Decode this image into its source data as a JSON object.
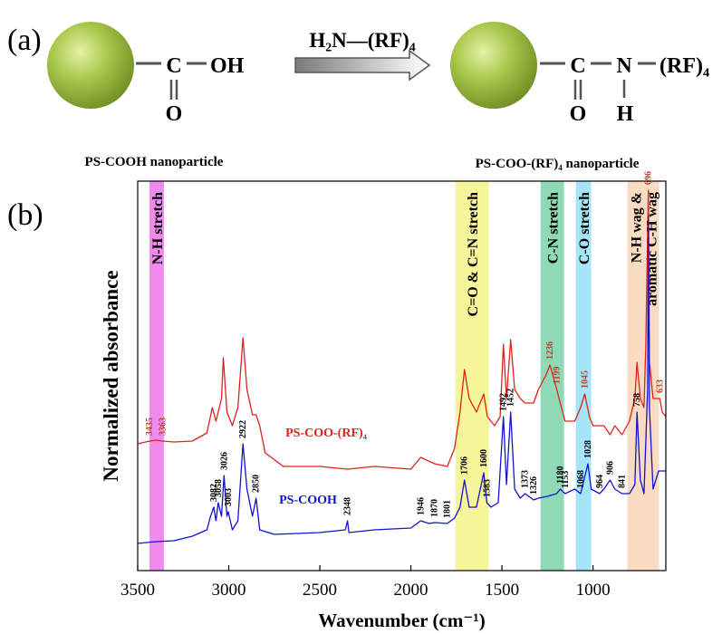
{
  "scheme": {
    "panel_label": "(a)",
    "left": {
      "c": "C",
      "oh": "OH",
      "o": "O",
      "caption": "PS-COOH nanoparticle"
    },
    "reagent": "H₂N—(RF)₄",
    "right": {
      "c": "C",
      "n": "N",
      "rf": "(RF)₄",
      "o": "O",
      "h": "H",
      "caption": "PS-COO-(RF)₄ nanoparticle"
    }
  },
  "chart_data": {
    "type": "line",
    "panel_label": "(b)",
    "x_label": "Wavenumber (cm⁻¹)",
    "y_label": "Normalized absorbance",
    "xlim": [
      3500,
      600
    ],
    "xticks": [
      3500,
      3000,
      2500,
      2000,
      1500,
      1000
    ],
    "ylim": [
      0,
      43
    ],
    "bands": [
      {
        "range": [
          3435,
          3356
        ],
        "color": "#ef8bef",
        "lines": [
          "N-H stretch"
        ]
      },
      {
        "range": [
          1755,
          1572
        ],
        "color": "#f7f59a",
        "lines": [
          "C=O & C=N stretch"
        ]
      },
      {
        "range": [
          1288,
          1159
        ],
        "color": "#8fd9b6",
        "lines": [
          "C-N stretch"
        ]
      },
      {
        "range": [
          1094,
          1010
        ],
        "color": "#a6e4f7",
        "lines": [
          "C-O stretch"
        ]
      },
      {
        "range": [
          811,
          637
        ],
        "color": "#f9dcc2",
        "lines": [
          "N-H wag &",
          "aromatic C-H wag"
        ]
      }
    ],
    "series": [
      {
        "name": "PS-COO-(RF)₄",
        "color": "#e0201c",
        "label_color": "#b5432e",
        "x": [
          3500,
          3435,
          3400,
          3363,
          3300,
          3200,
          3120,
          3090,
          3070,
          3058,
          3040,
          3030,
          3010,
          2980,
          2950,
          2922,
          2900,
          2870,
          2850,
          2830,
          2800,
          2700,
          2500,
          2348,
          2200,
          2000,
          1946,
          1870,
          1800,
          1760,
          1730,
          1706,
          1680,
          1640,
          1600,
          1580,
          1540,
          1510,
          1492,
          1475,
          1452,
          1430,
          1400,
          1373,
          1326,
          1300,
          1260,
          1236,
          1199,
          1180,
          1153,
          1100,
          1068,
          1045,
          1020,
          1000,
          964,
          940,
          906,
          880,
          841,
          800,
          770,
          758,
          740,
          720,
          710,
          696,
          690,
          670,
          650,
          633,
          620,
          600
        ],
        "values": [
          14.0,
          14.3,
          14.4,
          14.3,
          14.2,
          14.3,
          15.2,
          18.0,
          16.5,
          17.5,
          19.0,
          23.5,
          17.5,
          16.0,
          18.0,
          25.7,
          20.0,
          17.2,
          17.2,
          16.0,
          13.0,
          11.5,
          11.5,
          11.2,
          11.5,
          11.2,
          12.5,
          11.8,
          11.5,
          13.5,
          17.5,
          22.2,
          19.0,
          17.5,
          19.5,
          17.0,
          16.0,
          17.0,
          25.0,
          19.0,
          25.5,
          20.0,
          19.0,
          18.5,
          18.5,
          20.0,
          21.5,
          22.7,
          20.0,
          18.5,
          16.5,
          16.5,
          18.0,
          19.5,
          17.0,
          16.0,
          16.0,
          16.0,
          15.0,
          16.0,
          15.0,
          16.5,
          19.0,
          23.0,
          19.0,
          18.0,
          25.0,
          42.0,
          23.0,
          19.0,
          19.0,
          19.0,
          17.5,
          17.0
        ],
        "peak_labels": [
          3435,
          3363,
          1236,
          1199,
          1045,
          696,
          633
        ]
      },
      {
        "name": "PS-COOH",
        "color": "#1212d2",
        "label_color": "#000000",
        "x": [
          3500,
          3400,
          3300,
          3200,
          3120,
          3100,
          3082,
          3070,
          3058,
          3040,
          3026,
          3010,
          3003,
          2980,
          2950,
          2922,
          2900,
          2870,
          2850,
          2830,
          2750,
          2500,
          2360,
          2348,
          2340,
          2200,
          2000,
          1946,
          1900,
          1870,
          1801,
          1760,
          1730,
          1706,
          1680,
          1640,
          1600,
          1583,
          1560,
          1520,
          1492,
          1475,
          1452,
          1430,
          1400,
          1373,
          1326,
          1300,
          1250,
          1200,
          1180,
          1153,
          1100,
          1068,
          1028,
          1010,
          964,
          940,
          906,
          880,
          841,
          800,
          770,
          758,
          740,
          720,
          700,
          696,
          690,
          670,
          640,
          600
        ],
        "values": [
          3.0,
          3.2,
          3.3,
          3.8,
          4.5,
          6.0,
          7.0,
          5.5,
          7.5,
          6.0,
          10.5,
          6.0,
          6.5,
          4.5,
          5.5,
          14.0,
          9.0,
          6.0,
          8.0,
          4.5,
          4.0,
          4.2,
          4.5,
          5.5,
          4.2,
          4.5,
          4.7,
          5.5,
          5.2,
          5.3,
          5.2,
          5.8,
          7.0,
          10.0,
          7.0,
          7.0,
          10.8,
          7.5,
          7.0,
          7.5,
          17.0,
          9.5,
          17.5,
          9.0,
          8.0,
          8.5,
          7.8,
          8.0,
          8.2,
          8.5,
          9.0,
          8.5,
          9.0,
          8.5,
          11.8,
          9.0,
          8.5,
          9.0,
          10.0,
          9.0,
          8.5,
          8.5,
          9.5,
          17.5,
          10.0,
          8.5,
          20.0,
          39.2,
          18.0,
          9.0,
          11.0,
          11.0
        ],
        "peak_labels": [
          3082,
          3058,
          3026,
          3003,
          2922,
          2850,
          2348,
          1946,
          1870,
          1801,
          1706,
          1600,
          1583,
          1492,
          1452,
          1373,
          1326,
          1180,
          1153,
          1068,
          1028,
          964,
          906,
          841,
          758
        ]
      }
    ]
  }
}
